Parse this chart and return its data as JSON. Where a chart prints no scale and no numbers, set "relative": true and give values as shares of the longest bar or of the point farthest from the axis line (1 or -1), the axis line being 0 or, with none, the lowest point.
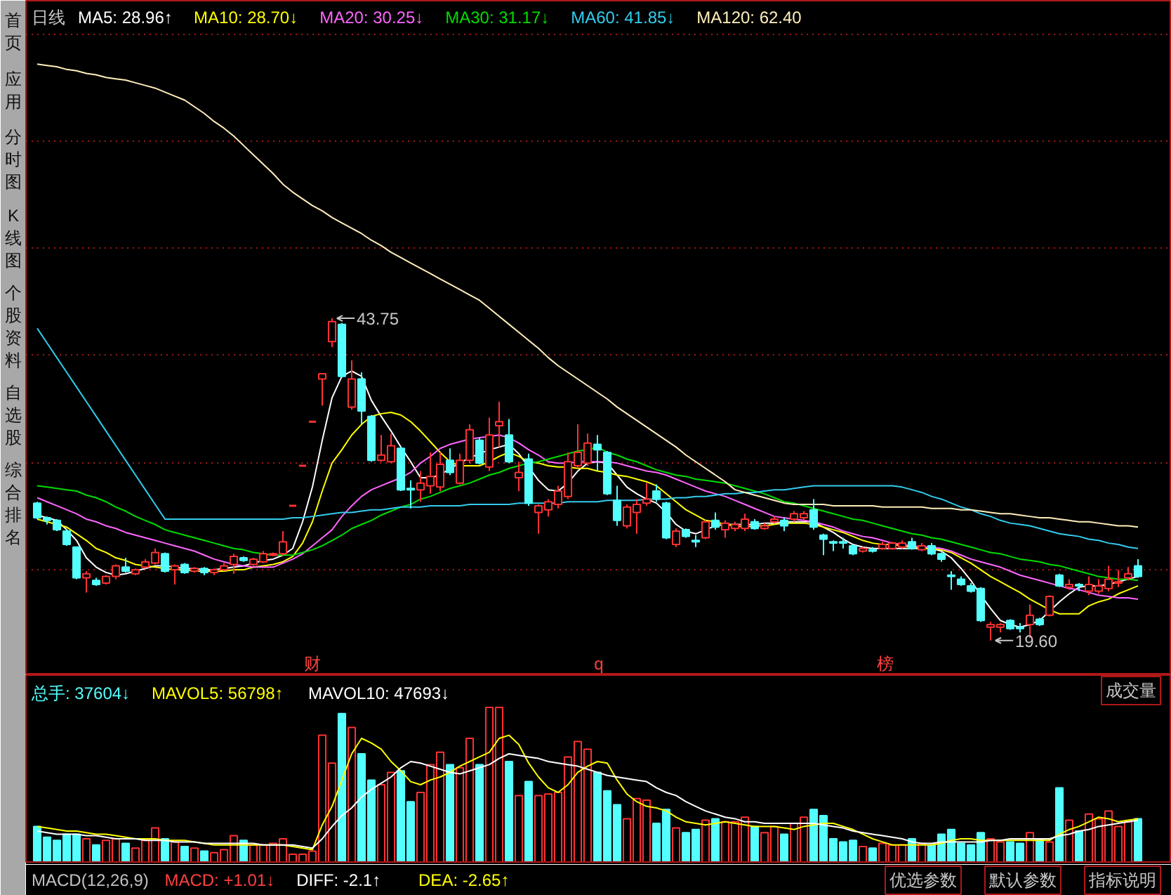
{
  "chart_data": [
    {
      "type": "other",
      "annotations": [
        "首页",
        "应用",
        "分时图",
        "K线图",
        "个股资料",
        "自选股",
        "综合排名"
      ]
    },
    {
      "type": "candlestick",
      "title": "日线",
      "legend": "top left",
      "tick_labels": false,
      "grid": "y",
      "yticks": [
        {
          "value": 24.9,
          "label": null
        },
        {
          "value": 32.9,
          "label": null
        },
        {
          "value": 41.0,
          "label": null
        },
        {
          "value": 49.0,
          "label": null
        },
        {
          "value": 57.0,
          "label": null
        },
        {
          "value": 65.0,
          "label": null
        }
      ],
      "categories": [
        null,
        null,
        null,
        null,
        null,
        null,
        null,
        null,
        null,
        null,
        null,
        null,
        null,
        null,
        null,
        null,
        null,
        null,
        null,
        null,
        null,
        null,
        null,
        null,
        null,
        null,
        null,
        null,
        null,
        null,
        null,
        null,
        null,
        null,
        null,
        null,
        null,
        null,
        null,
        null,
        null,
        null,
        null,
        null,
        null,
        null,
        null,
        null,
        null,
        null,
        null,
        null,
        null,
        null,
        null,
        null,
        null,
        null,
        null,
        null,
        null,
        null,
        null,
        null,
        null,
        null,
        null,
        null,
        null,
        null,
        null,
        null,
        null,
        null,
        null,
        null,
        null,
        null,
        null,
        null,
        null,
        null,
        null,
        null,
        null,
        null,
        null,
        null,
        null,
        null,
        null,
        null,
        null,
        null,
        null,
        null,
        null,
        null,
        null,
        null,
        null,
        null,
        null,
        null,
        null,
        null,
        null,
        null,
        null,
        null,
        null,
        null,
        null
      ],
      "ohlc": [
        [
          29.9,
          30.0,
          28.7,
          28.8
        ],
        [
          28.8,
          28.9,
          28.3,
          28.6
        ],
        [
          28.6,
          28.7,
          27.8,
          27.9
        ],
        [
          27.8,
          27.9,
          26.7,
          26.8
        ],
        [
          26.6,
          26.6,
          24.2,
          24.3
        ],
        [
          24.3,
          24.8,
          23.2,
          24.6
        ],
        [
          24.1,
          24.3,
          23.7,
          23.8
        ],
        [
          23.9,
          24.5,
          23.8,
          24.4
        ],
        [
          24.4,
          25.3,
          24.2,
          25.2
        ],
        [
          25.1,
          25.8,
          24.7,
          24.8
        ],
        [
          24.6,
          25.0,
          24.5,
          24.9
        ],
        [
          25.1,
          25.7,
          25.0,
          25.5
        ],
        [
          25.4,
          26.5,
          25.3,
          26.2
        ],
        [
          26.1,
          26.2,
          24.7,
          24.8
        ],
        [
          24.9,
          25.3,
          23.8,
          25.2
        ],
        [
          25.3,
          25.4,
          24.6,
          24.7
        ],
        [
          24.8,
          25.1,
          24.7,
          25.0
        ],
        [
          25.0,
          25.1,
          24.5,
          24.7
        ],
        [
          24.7,
          25.0,
          24.5,
          24.9
        ],
        [
          24.9,
          25.4,
          24.8,
          25.2
        ],
        [
          25.3,
          26.1,
          24.6,
          25.9
        ],
        [
          25.8,
          25.9,
          25.5,
          25.6
        ],
        [
          25.3,
          25.8,
          25.2,
          25.7
        ],
        [
          25.5,
          26.3,
          25.4,
          26.1
        ],
        [
          26.0,
          26.2,
          25.9,
          26.1
        ],
        [
          26.1,
          27.8,
          26.0,
          27.0
        ],
        [
          29.7,
          29.7,
          29.7,
          29.7
        ],
        [
          32.7,
          32.7,
          32.7,
          32.7
        ],
        [
          36.0,
          36.0,
          36.0,
          36.0
        ],
        [
          39.2,
          39.6,
          37.2,
          39.6
        ],
        [
          42.0,
          43.75,
          41.6,
          43.5
        ],
        [
          43.3,
          43.4,
          39.3,
          39.4
        ],
        [
          37.1,
          40.6,
          36.9,
          39.2
        ],
        [
          39.2,
          39.7,
          35.8,
          36.8
        ],
        [
          36.4,
          36.5,
          33.0,
          33.1
        ],
        [
          33.1,
          35.0,
          33.0,
          33.5
        ],
        [
          33.0,
          35.1,
          32.9,
          34.2
        ],
        [
          34.0,
          34.1,
          30.8,
          30.9
        ],
        [
          31.0,
          31.6,
          29.5,
          30.9
        ],
        [
          30.9,
          32.3,
          30.0,
          31.4
        ],
        [
          31.2,
          33.7,
          30.6,
          31.9
        ],
        [
          31.1,
          33.7,
          30.8,
          32.8
        ],
        [
          33.1,
          34.0,
          32.0,
          32.2
        ],
        [
          31.4,
          33.6,
          31.3,
          33.1
        ],
        [
          33.1,
          35.8,
          32.9,
          35.4
        ],
        [
          34.6,
          34.8,
          32.8,
          32.9
        ],
        [
          32.6,
          36.3,
          32.3,
          35.0
        ],
        [
          35.7,
          37.5,
          34.1,
          36.0
        ],
        [
          35.0,
          36.2,
          32.9,
          33.0
        ],
        [
          31.8,
          33.0,
          30.8,
          32.2
        ],
        [
          33.2,
          33.6,
          29.7,
          29.9
        ],
        [
          29.2,
          29.8,
          27.6,
          29.7
        ],
        [
          29.4,
          30.2,
          28.9,
          30.0
        ],
        [
          29.8,
          31.2,
          29.5,
          30.8
        ],
        [
          30.4,
          33.7,
          30.2,
          33.0
        ],
        [
          32.7,
          35.8,
          32.5,
          33.7
        ],
        [
          32.9,
          35.1,
          32.7,
          34.4
        ],
        [
          34.3,
          35.0,
          32.3,
          33.9
        ],
        [
          33.7,
          33.8,
          30.5,
          30.6
        ],
        [
          30.1,
          31.2,
          28.2,
          28.6
        ],
        [
          28.2,
          29.8,
          28.0,
          29.6
        ],
        [
          29.2,
          30.2,
          27.6,
          29.8
        ],
        [
          29.9,
          31.4,
          29.7,
          30.2
        ],
        [
          30.8,
          31.3,
          30.0,
          30.2
        ],
        [
          29.9,
          30.0,
          27.2,
          27.3
        ],
        [
          26.8,
          28.0,
          26.6,
          27.8
        ],
        [
          27.9,
          28.0,
          27.3,
          27.4
        ],
        [
          27.1,
          27.5,
          26.6,
          27.0
        ],
        [
          27.3,
          28.6,
          27.2,
          28.5
        ],
        [
          28.6,
          29.2,
          27.9,
          28.1
        ],
        [
          27.9,
          28.6,
          27.3,
          28.4
        ],
        [
          28.0,
          28.5,
          27.8,
          28.3
        ],
        [
          28.0,
          29.1,
          27.8,
          28.7
        ],
        [
          28.5,
          28.7,
          27.9,
          28.0
        ],
        [
          28.0,
          28.4,
          27.9,
          28.2
        ],
        [
          28.5,
          28.9,
          28.4,
          28.7
        ],
        [
          28.6,
          28.8,
          27.8,
          28.2
        ],
        [
          28.7,
          29.3,
          28.5,
          29.1
        ],
        [
          28.8,
          29.3,
          28.6,
          29.1
        ],
        [
          29.4,
          30.2,
          27.9,
          28.1
        ],
        [
          27.5,
          27.6,
          26.0,
          27.2
        ],
        [
          27.0,
          27.1,
          26.3,
          26.9
        ],
        [
          27.0,
          27.3,
          26.5,
          26.9
        ],
        [
          26.7,
          26.8,
          26.0,
          26.1
        ],
        [
          26.3,
          26.6,
          26.2,
          26.5
        ],
        [
          26.4,
          26.6,
          26.2,
          26.3
        ],
        [
          26.5,
          27.0,
          26.4,
          26.8
        ],
        [
          26.5,
          27.0,
          26.4,
          26.9
        ],
        [
          26.6,
          27.1,
          26.5,
          26.9
        ],
        [
          27.0,
          27.3,
          26.4,
          26.5
        ],
        [
          26.4,
          26.9,
          26.3,
          26.7
        ],
        [
          26.7,
          26.9,
          26.0,
          26.1
        ],
        [
          26.1,
          26.2,
          25.5,
          25.7
        ],
        [
          24.5,
          24.8,
          23.4,
          24.4
        ],
        [
          24.2,
          24.4,
          23.7,
          23.8
        ],
        [
          23.7,
          23.9,
          23.2,
          23.3
        ],
        [
          23.5,
          23.6,
          21.0,
          21.1
        ],
        [
          20.6,
          21.0,
          19.6,
          20.8
        ],
        [
          20.6,
          20.9,
          20.2,
          20.8
        ],
        [
          21.1,
          21.2,
          20.4,
          20.5
        ],
        [
          20.6,
          20.9,
          20.2,
          20.5
        ],
        [
          20.8,
          22.3,
          19.8,
          21.5
        ],
        [
          21.2,
          21.3,
          20.7,
          20.8
        ],
        [
          21.5,
          23.0,
          21.4,
          22.9
        ],
        [
          24.5,
          24.6,
          23.6,
          23.7
        ],
        [
          23.6,
          24.2,
          23.4,
          23.8
        ],
        [
          23.8,
          23.9,
          23.3,
          23.7
        ],
        [
          23.3,
          24.4,
          23.0,
          23.8
        ],
        [
          23.3,
          24.2,
          23.1,
          23.7
        ],
        [
          23.5,
          25.2,
          23.3,
          24.2
        ],
        [
          23.9,
          24.9,
          23.6,
          24.0
        ],
        [
          24.3,
          25.1,
          24.1,
          24.6
        ],
        [
          25.2,
          25.7,
          24.3,
          24.4
        ]
      ],
      "colors": [
        "#54ffff",
        "#54ffff",
        "#54ffff",
        "#54ffff",
        "#54ffff",
        "#ff3232",
        "#54ffff",
        "#ff3232",
        "#ff3232",
        "#54ffff",
        "#ff3232",
        "#ff3232",
        "#ff3232",
        "#54ffff",
        "#ff3232",
        "#54ffff",
        "#ff3232",
        "#54ffff",
        "#ff3232",
        "#ff3232",
        "#ff3232",
        "#54ffff",
        "#ff3232",
        "#ff3232",
        "#ff3232",
        "#ff3232",
        "#ff3232",
        "#ff3232",
        "#ff3232",
        "#ff3232",
        "#ff3232",
        "#54ffff",
        "#ff3232",
        "#54ffff",
        "#54ffff",
        "#ff3232",
        "#ff3232",
        "#54ffff",
        "#54ffff",
        "#ff3232",
        "#ff3232",
        "#ff3232",
        "#54ffff",
        "#ff3232",
        "#ff3232",
        "#54ffff",
        "#ff3232",
        "#ff3232",
        "#54ffff",
        "#ff3232",
        "#54ffff",
        "#ff3232",
        "#ff3232",
        "#ff3232",
        "#ff3232",
        "#ff3232",
        "#ff3232",
        "#54ffff",
        "#54ffff",
        "#54ffff",
        "#ff3232",
        "#ff3232",
        "#ff3232",
        "#54ffff",
        "#54ffff",
        "#ff3232",
        "#54ffff",
        "#54ffff",
        "#ff3232",
        "#54ffff",
        "#ff3232",
        "#ff3232",
        "#ff3232",
        "#54ffff",
        "#ff3232",
        "#ff3232",
        "#54ffff",
        "#ff3232",
        "#ff3232",
        "#54ffff",
        "#54ffff",
        "#54ffff",
        "#54ffff",
        "#54ffff",
        "#ff3232",
        "#54ffff",
        "#ff3232",
        "#ff3232",
        "#ff3232",
        "#54ffff",
        "#ff3232",
        "#54ffff",
        "#54ffff",
        "#54ffff",
        "#54ffff",
        "#54ffff",
        "#54ffff",
        "#ff3232",
        "#ff3232",
        "#54ffff",
        "#54ffff",
        "#ff3232",
        "#54ffff",
        "#ff3232",
        "#54ffff",
        "#ff3232",
        "#54ffff",
        "#ff3232",
        "#ff3232",
        "#ff3232",
        "#ff3232",
        "#ff3232",
        "#54ffff"
      ],
      "series": [
        {
          "name": "MA5: 28.96↑",
          "type": "line",
          "color": "#ffffff",
          "values": [
            29.0,
            28.8,
            28.6,
            27.9,
            27.1,
            25.8,
            25.1,
            24.7,
            24.5,
            24.6,
            24.8,
            25.0,
            25.2,
            25.2,
            25.1,
            25.0,
            25.0,
            24.9,
            24.9,
            25.0,
            25.1,
            25.2,
            25.4,
            25.6,
            25.7,
            26.0,
            26.5,
            28.5,
            31.1,
            34.6,
            37.8,
            39.4,
            39.8,
            39.4,
            37.6,
            36.4,
            35.3,
            34.1,
            33.0,
            31.8,
            31.8,
            32.0,
            32.5,
            32.9,
            33.3,
            33.6,
            33.9,
            34.1,
            34.3,
            33.6,
            32.6,
            31.6,
            30.9,
            30.8,
            31.4,
            32.3,
            32.9,
            33.0,
            32.9,
            32.0,
            31.1,
            30.6,
            30.2,
            29.9,
            29.2,
            28.3,
            27.8,
            27.6,
            27.9,
            28.2,
            28.3,
            28.3,
            28.3,
            28.3,
            28.4,
            28.4,
            28.5,
            28.5,
            28.5,
            28.5,
            28.1,
            27.7,
            27.2,
            26.8,
            26.6,
            26.5,
            26.5,
            26.5,
            26.5,
            26.5,
            26.5,
            26.5,
            26.3,
            25.8,
            25.0,
            24.1,
            23.0,
            22.0,
            21.1,
            20.8,
            20.6,
            20.8,
            21.1,
            21.8,
            22.5,
            23.1,
            23.6,
            23.7,
            23.7,
            23.8,
            24.0,
            24.2,
            24.4
          ]
        },
        {
          "name": "MA10: 28.70↓",
          "type": "line",
          "color": "#ffff00",
          "values": [
            28.7,
            28.5,
            28.3,
            28.1,
            27.6,
            27.1,
            26.5,
            26.2,
            25.8,
            25.6,
            25.3,
            25.2,
            25.1,
            25.0,
            24.9,
            24.9,
            24.8,
            24.8,
            24.8,
            24.8,
            24.9,
            24.9,
            25.1,
            25.2,
            25.3,
            25.5,
            25.9,
            26.9,
            28.5,
            30.8,
            32.9,
            33.9,
            35.0,
            35.8,
            36.4,
            36.6,
            36.7,
            36.5,
            36.0,
            35.3,
            34.5,
            33.7,
            33.0,
            32.7,
            32.7,
            32.7,
            33.0,
            33.4,
            33.7,
            33.4,
            33.0,
            32.9,
            32.7,
            32.6,
            32.6,
            32.5,
            32.5,
            32.3,
            32.2,
            32.0,
            31.9,
            31.7,
            31.5,
            31.2,
            30.6,
            30.0,
            29.4,
            29.0,
            28.6,
            28.5,
            28.3,
            28.2,
            28.1,
            28.2,
            28.2,
            28.3,
            28.4,
            28.4,
            28.4,
            28.3,
            28.1,
            27.9,
            27.7,
            27.4,
            27.1,
            26.9,
            26.8,
            26.8,
            26.7,
            26.6,
            26.5,
            26.5,
            26.4,
            26.2,
            25.8,
            25.4,
            24.9,
            24.4,
            24.0,
            23.6,
            23.2,
            22.7,
            22.3,
            21.9,
            21.6,
            21.6,
            21.6,
            22.2,
            22.5,
            22.7,
            23.1,
            23.4,
            23.7
          ]
        },
        {
          "name": "MA20: 30.25↓",
          "type": "line",
          "color": "#ff66ff",
          "values": [
            30.3,
            30.0,
            29.7,
            29.4,
            29.1,
            28.7,
            28.5,
            28.2,
            28.0,
            27.7,
            27.5,
            27.3,
            27.1,
            26.9,
            26.7,
            26.5,
            26.3,
            26.0,
            25.7,
            25.5,
            25.3,
            25.2,
            25.1,
            25.1,
            25.1,
            25.4,
            25.7,
            26.1,
            26.7,
            27.3,
            27.9,
            28.9,
            29.7,
            30.4,
            30.9,
            31.2,
            31.5,
            31.8,
            32.2,
            32.9,
            33.4,
            34.0,
            34.3,
            34.5,
            34.7,
            34.8,
            34.9,
            35.0,
            34.8,
            34.4,
            33.9,
            33.5,
            33.0,
            32.9,
            32.9,
            33.0,
            33.0,
            33.0,
            33.0,
            32.9,
            32.7,
            32.5,
            32.3,
            32.2,
            32.0,
            31.7,
            31.4,
            31.1,
            30.8,
            30.6,
            30.4,
            30.1,
            29.8,
            29.5,
            29.2,
            28.9,
            28.8,
            28.7,
            28.6,
            28.5,
            28.3,
            28.1,
            27.8,
            27.6,
            27.4,
            27.3,
            27.1,
            26.9,
            26.8,
            26.7,
            26.6,
            26.6,
            26.5,
            26.3,
            26.0,
            25.7,
            25.5,
            25.3,
            25.1,
            24.8,
            24.5,
            24.3,
            24.1,
            23.9,
            23.7,
            23.5,
            23.4,
            23.2,
            23.0,
            22.9,
            22.8,
            22.8,
            22.7
          ]
        },
        {
          "name": "MA30: 31.17↓",
          "type": "line",
          "color": "#00dd00",
          "values": [
            31.2,
            31.1,
            31.0,
            30.9,
            30.8,
            30.5,
            30.3,
            30.0,
            29.6,
            29.3,
            28.9,
            28.6,
            28.3,
            27.9,
            27.7,
            27.5,
            27.3,
            27.1,
            26.9,
            26.7,
            26.5,
            26.4,
            26.2,
            26.1,
            26.0,
            26.0,
            26.0,
            26.2,
            26.4,
            26.7,
            27.1,
            27.5,
            28.0,
            28.3,
            28.6,
            29.0,
            29.3,
            29.6,
            29.8,
            30.2,
            30.4,
            30.7,
            31.0,
            31.2,
            31.4,
            31.7,
            32.0,
            32.2,
            32.5,
            32.7,
            32.9,
            33.0,
            33.2,
            33.4,
            33.6,
            33.8,
            33.9,
            34.1,
            33.7,
            33.5,
            33.2,
            33.0,
            32.7,
            32.4,
            32.2,
            32.0,
            31.9,
            31.7,
            31.6,
            31.5,
            31.4,
            31.2,
            31.0,
            30.8,
            30.6,
            30.3,
            30.0,
            29.9,
            29.7,
            29.5,
            29.3,
            29.1,
            28.9,
            28.7,
            28.6,
            28.4,
            28.2,
            28.0,
            27.8,
            27.6,
            27.5,
            27.3,
            27.2,
            27.0,
            26.8,
            26.6,
            26.4,
            26.2,
            26.1,
            25.9,
            25.7,
            25.6,
            25.5,
            25.3,
            25.2,
            25.0,
            24.8,
            24.6,
            24.4,
            24.3,
            24.2,
            24.2,
            24.1
          ]
        },
        {
          "name": "MA60: 41.85↓",
          "type": "line",
          "color": "#33ccee",
          "values": [
            43.0,
            41.9,
            40.8,
            39.7,
            38.6,
            37.5,
            36.4,
            35.3,
            34.2,
            33.1,
            32.0,
            30.9,
            29.8,
            28.7,
            28.7,
            28.7,
            28.7,
            28.7,
            28.7,
            28.7,
            28.7,
            28.7,
            28.7,
            28.7,
            28.7,
            28.7,
            28.8,
            28.8,
            28.9,
            29.0,
            29.1,
            29.2,
            29.2,
            29.3,
            29.4,
            29.4,
            29.5,
            29.6,
            29.6,
            29.6,
            29.7,
            29.7,
            29.7,
            29.7,
            29.8,
            29.8,
            29.8,
            29.8,
            29.8,
            29.9,
            29.9,
            29.9,
            29.9,
            29.9,
            30.0,
            30.0,
            30.0,
            30.0,
            30.1,
            30.1,
            30.1,
            30.1,
            30.2,
            30.2,
            30.2,
            30.3,
            30.3,
            30.4,
            30.4,
            30.5,
            30.6,
            30.6,
            30.7,
            30.7,
            30.8,
            30.9,
            30.9,
            31.0,
            31.1,
            31.2,
            31.2,
            31.2,
            31.2,
            31.2,
            31.2,
            31.2,
            31.2,
            31.2,
            31.1,
            30.9,
            30.7,
            30.4,
            30.2,
            29.9,
            29.6,
            29.4,
            29.1,
            28.9,
            28.6,
            28.4,
            28.3,
            28.2,
            28.0,
            27.8,
            27.6,
            27.5,
            27.4,
            27.2,
            27.1,
            26.9,
            26.8,
            26.6,
            26.5
          ]
        },
        {
          "name": "MA120: 62.40",
          "type": "line",
          "color": "#ffeebb",
          "values": [
            62.8,
            62.7,
            62.6,
            62.4,
            62.3,
            62.1,
            62.0,
            61.8,
            61.7,
            61.6,
            61.4,
            61.2,
            61.0,
            60.7,
            60.4,
            60.1,
            59.6,
            59.1,
            58.5,
            58.0,
            57.4,
            56.7,
            56.0,
            55.3,
            54.6,
            53.8,
            53.2,
            52.7,
            52.2,
            51.8,
            51.3,
            50.9,
            50.5,
            50.1,
            49.6,
            49.2,
            48.7,
            48.3,
            47.9,
            47.5,
            47.1,
            46.7,
            46.3,
            45.9,
            45.5,
            45.1,
            44.5,
            43.9,
            43.3,
            42.7,
            42.1,
            41.5,
            40.8,
            40.2,
            39.7,
            39.2,
            38.7,
            38.2,
            37.7,
            37.1,
            36.6,
            36.1,
            35.6,
            35.1,
            34.6,
            34.1,
            33.5,
            33.0,
            32.5,
            32.0,
            31.5,
            30.9,
            30.7,
            30.5,
            30.3,
            30.1,
            29.9,
            29.8,
            29.8,
            29.8,
            29.8,
            29.7,
            29.7,
            29.7,
            29.7,
            29.7,
            29.6,
            29.6,
            29.6,
            29.6,
            29.6,
            29.5,
            29.5,
            29.5,
            29.4,
            29.4,
            29.3,
            29.2,
            29.1,
            29.1,
            29.0,
            28.9,
            28.8,
            28.8,
            28.7,
            28.6,
            28.5,
            28.5,
            28.4,
            28.3,
            28.2,
            28.2,
            28.1
          ]
        }
      ],
      "annotations": [
        "财",
        "q",
        "榜",
        "43.75",
        "19.60"
      ]
    },
    {
      "type": "bar",
      "relative": true,
      "legend": "top left",
      "tick_labels": false,
      "categories": [
        null,
        null,
        null,
        null,
        null,
        null,
        null,
        null,
        null,
        null,
        null,
        null,
        null,
        null,
        null,
        null,
        null,
        null,
        null,
        null,
        null,
        null,
        null,
        null,
        null,
        null,
        null,
        null,
        null,
        null,
        null,
        null,
        null,
        null,
        null,
        null,
        null,
        null,
        null,
        null,
        null,
        null,
        null,
        null,
        null,
        null,
        null,
        null,
        null,
        null,
        null,
        null,
        null,
        null,
        null,
        null,
        null,
        null,
        null,
        null,
        null,
        null,
        null,
        null,
        null,
        null,
        null,
        null,
        null,
        null,
        null,
        null,
        null,
        null,
        null,
        null,
        null,
        null,
        null,
        null,
        null,
        null,
        null,
        null,
        null,
        null,
        null,
        null,
        null,
        null,
        null,
        null,
        null,
        null,
        null,
        null,
        null,
        null,
        null,
        null,
        null,
        null,
        null,
        null,
        null,
        null,
        null,
        null,
        null,
        null,
        null,
        null,
        null
      ],
      "series": [
        {
          "name": "总手: 37604↓",
          "color": "#54ffff",
          "colors": [
            "#54ffff",
            "#54ffff",
            "#54ffff",
            "#54ffff",
            "#54ffff",
            "#ff3232",
            "#54ffff",
            "#ff3232",
            "#ff3232",
            "#54ffff",
            "#ff3232",
            "#ff3232",
            "#ff3232",
            "#54ffff",
            "#ff3232",
            "#54ffff",
            "#ff3232",
            "#54ffff",
            "#ff3232",
            "#ff3232",
            "#ff3232",
            "#54ffff",
            "#ff3232",
            "#ff3232",
            "#ff3232",
            "#ff3232",
            "#ff3232",
            "#ff3232",
            "#ff3232",
            "#ff3232",
            "#ff3232",
            "#54ffff",
            "#ff3232",
            "#54ffff",
            "#54ffff",
            "#ff3232",
            "#ff3232",
            "#54ffff",
            "#54ffff",
            "#ff3232",
            "#ff3232",
            "#ff3232",
            "#54ffff",
            "#ff3232",
            "#ff3232",
            "#54ffff",
            "#ff3232",
            "#ff3232",
            "#54ffff",
            "#ff3232",
            "#54ffff",
            "#ff3232",
            "#ff3232",
            "#ff3232",
            "#ff3232",
            "#ff3232",
            "#ff3232",
            "#54ffff",
            "#54ffff",
            "#54ffff",
            "#ff3232",
            "#ff3232",
            "#ff3232",
            "#54ffff",
            "#54ffff",
            "#ff3232",
            "#54ffff",
            "#54ffff",
            "#ff3232",
            "#54ffff",
            "#ff3232",
            "#ff3232",
            "#ff3232",
            "#54ffff",
            "#ff3232",
            "#ff3232",
            "#54ffff",
            "#ff3232",
            "#ff3232",
            "#54ffff",
            "#54ffff",
            "#54ffff",
            "#54ffff",
            "#54ffff",
            "#ff3232",
            "#54ffff",
            "#ff3232",
            "#ff3232",
            "#ff3232",
            "#54ffff",
            "#ff3232",
            "#54ffff",
            "#54ffff",
            "#54ffff",
            "#54ffff",
            "#54ffff",
            "#54ffff",
            "#ff3232",
            "#ff3232",
            "#54ffff",
            "#54ffff",
            "#ff3232",
            "#54ffff",
            "#ff3232",
            "#54ffff",
            "#ff3232",
            "#54ffff",
            "#ff3232",
            "#ff3232",
            "#ff3232",
            "#ff3232",
            "#ff3232",
            "#54ffff"
          ],
          "values": [
            0.23,
            0.16,
            0.14,
            0.18,
            0.18,
            0.15,
            0.11,
            0.14,
            0.15,
            0.12,
            0.09,
            0.14,
            0.22,
            0.15,
            0.13,
            0.1,
            0.09,
            0.07,
            0.06,
            0.08,
            0.17,
            0.14,
            0.11,
            0.11,
            0.12,
            0.15,
            0.05,
            0.05,
            0.07,
            0.82,
            0.64,
            0.96,
            0.87,
            0.7,
            0.53,
            0.5,
            0.58,
            0.59,
            0.39,
            0.45,
            0.63,
            0.71,
            0.63,
            0.61,
            0.8,
            0.63,
            1,
            1,
            0.65,
            0.43,
            0.52,
            0.43,
            0.44,
            0.45,
            0.68,
            0.78,
            0.73,
            0.58,
            0.46,
            0.37,
            0.28,
            0.41,
            0.4,
            0.25,
            0.34,
            0.22,
            0.19,
            0.21,
            0.27,
            0.28,
            0.26,
            0.26,
            0.29,
            0.23,
            0.19,
            0.23,
            0.18,
            0.25,
            0.29,
            0.34,
            0.3,
            0.15,
            0.13,
            0.14,
            0.1,
            0.09,
            0.12,
            0.11,
            0.11,
            0.15,
            0.12,
            0.11,
            0.18,
            0.21,
            0.12,
            0.11,
            0.19,
            0.15,
            0.13,
            0.13,
            0.12,
            0.19,
            0.15,
            0.13,
            0.48,
            0.27,
            0.2,
            0.31,
            0.28,
            0.33,
            0.23,
            0.26,
            0.28
          ]
        },
        {
          "name": "MAVOL5: 56798↑",
          "type": "line",
          "color": "#ffff00",
          "values": [
            0.23,
            0.22,
            0.21,
            0.2,
            0.2,
            0.19,
            0.18,
            0.18,
            0.17,
            0.16,
            0.15,
            0.15,
            0.15,
            0.14,
            0.14,
            0.14,
            0.13,
            0.12,
            0.11,
            0.11,
            0.11,
            0.11,
            0.11,
            0.11,
            0.11,
            0.11,
            0.1,
            0.09,
            0.08,
            0.24,
            0.36,
            0.53,
            0.7,
            0.8,
            0.77,
            0.73,
            0.65,
            0.59,
            0.52,
            0.5,
            0.53,
            0.55,
            0.58,
            0.62,
            0.65,
            0.68,
            0.71,
            0.8,
            0.82,
            0.76,
            0.64,
            0.55,
            0.48,
            0.45,
            0.5,
            0.58,
            0.62,
            0.65,
            0.64,
            0.53,
            0.44,
            0.39,
            0.36,
            0.35,
            0.33,
            0.29,
            0.26,
            0.25,
            0.24,
            0.25,
            0.26,
            0.25,
            0.24,
            0.23,
            0.23,
            0.23,
            0.22,
            0.21,
            0.23,
            0.24,
            0.25,
            0.25,
            0.23,
            0.21,
            0.18,
            0.15,
            0.13,
            0.11,
            0.11,
            0.11,
            0.11,
            0.11,
            0.12,
            0.14,
            0.15,
            0.15,
            0.14,
            0.14,
            0.14,
            0.14,
            0.14,
            0.14,
            0.14,
            0.14,
            0.18,
            0.21,
            0.23,
            0.26,
            0.29,
            0.28,
            0.26,
            0.27,
            0.28
          ]
        },
        {
          "name": "MAVOL10: 47693↓",
          "type": "line",
          "color": "#ffffff",
          "values": [
            0.2,
            0.19,
            0.18,
            0.18,
            0.18,
            0.17,
            0.17,
            0.16,
            0.15,
            0.15,
            0.15,
            0.14,
            0.14,
            0.14,
            0.13,
            0.13,
            0.13,
            0.12,
            0.12,
            0.12,
            0.12,
            0.12,
            0.12,
            0.11,
            0.11,
            0.11,
            0.11,
            0.1,
            0.09,
            0.15,
            0.23,
            0.3,
            0.35,
            0.42,
            0.47,
            0.51,
            0.55,
            0.61,
            0.65,
            0.64,
            0.62,
            0.6,
            0.58,
            0.57,
            0.59,
            0.61,
            0.63,
            0.67,
            0.7,
            0.69,
            0.68,
            0.67,
            0.65,
            0.64,
            0.63,
            0.62,
            0.6,
            0.58,
            0.56,
            0.55,
            0.54,
            0.53,
            0.52,
            0.48,
            0.45,
            0.43,
            0.39,
            0.36,
            0.33,
            0.31,
            0.29,
            0.28,
            0.26,
            0.26,
            0.25,
            0.25,
            0.25,
            0.25,
            0.25,
            0.25,
            0.24,
            0.23,
            0.22,
            0.2,
            0.19,
            0.18,
            0.17,
            0.16,
            0.15,
            0.13,
            0.12,
            0.12,
            0.13,
            0.13,
            0.13,
            0.13,
            0.13,
            0.14,
            0.14,
            0.15,
            0.15,
            0.15,
            0.15,
            0.15,
            0.17,
            0.18,
            0.2,
            0.21,
            0.23,
            0.24,
            0.25,
            0.26,
            0.27
          ]
        }
      ],
      "annotations": [
        "成交量",
        "MACD(12,26,9)",
        "MACD: +1.01↓",
        "DIFF: -2.1↑",
        "DEA: -2.65↑",
        "优选参数",
        "默认参数",
        "指标说明"
      ]
    }
  ]
}
